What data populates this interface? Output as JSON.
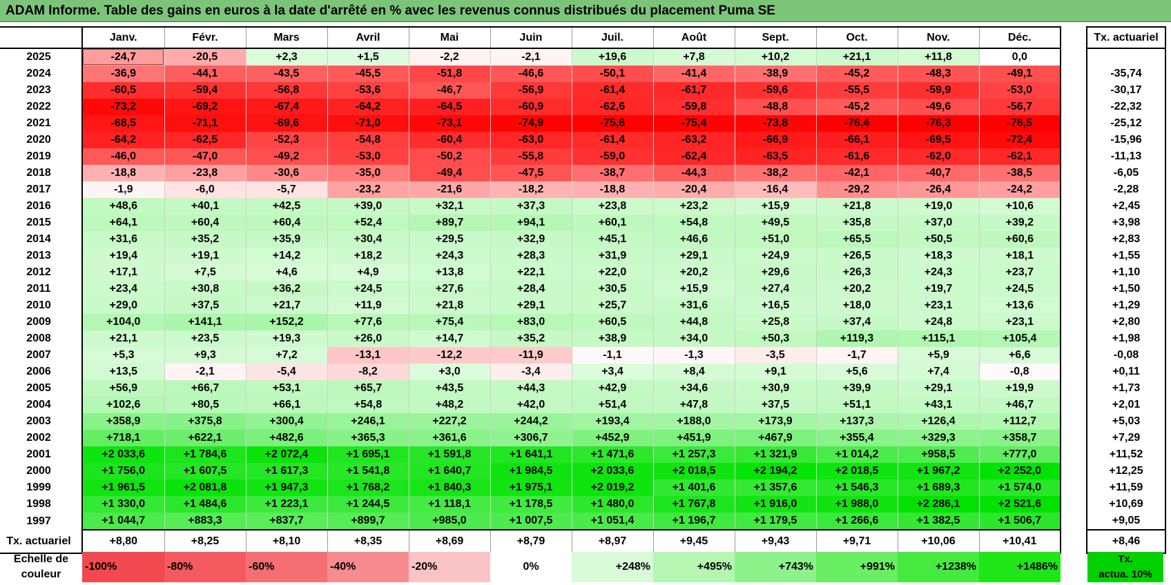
{
  "title": "ADAM Informe. Table des gains en euros à la date d'arrêté en % avec les revenus connus distribués du placement Puma SE",
  "months": [
    "Janv.",
    "Févr.",
    "Mars",
    "Avril",
    "Mai",
    "Juin",
    "Juil.",
    "Août",
    "Sept.",
    "Oct.",
    "Nov.",
    "Déc."
  ],
  "side_header": "Tx. actuariel",
  "rows": [
    {
      "year": "2025",
      "values": [
        "-24,7",
        "-20,5",
        "+2,3",
        "+1,5",
        "-2,2",
        "-2,1",
        "+19,6",
        "+7,8",
        "+10,2",
        "+21,1",
        "+11,8",
        "0,0"
      ],
      "tx": ""
    },
    {
      "year": "2024",
      "values": [
        "-36,9",
        "-44,1",
        "-43,5",
        "-45,5",
        "-51,8",
        "-46,6",
        "-50,1",
        "-41,4",
        "-38,9",
        "-45,2",
        "-48,3",
        "-49,1"
      ],
      "tx": "-35,74"
    },
    {
      "year": "2023",
      "values": [
        "-60,5",
        "-59,4",
        "-56,8",
        "-53,6",
        "-46,7",
        "-56,9",
        "-61,4",
        "-61,7",
        "-59,6",
        "-55,5",
        "-59,9",
        "-53,0"
      ],
      "tx": "-30,17"
    },
    {
      "year": "2022",
      "values": [
        "-73,2",
        "-69,2",
        "-67,4",
        "-64,2",
        "-64,5",
        "-60,9",
        "-62,6",
        "-59,8",
        "-48,8",
        "-45,2",
        "-49,6",
        "-56,7"
      ],
      "tx": "-22,32"
    },
    {
      "year": "2021",
      "values": [
        "-68,5",
        "-71,1",
        "-69,6",
        "-71,0",
        "-73,1",
        "-74,9",
        "-75,6",
        "-75,4",
        "-73,8",
        "-76,4",
        "-76,3",
        "-76,5"
      ],
      "tx": "-25,12"
    },
    {
      "year": "2020",
      "values": [
        "-64,2",
        "-62,5",
        "-52,3",
        "-54,8",
        "-60,4",
        "-63,0",
        "-61,4",
        "-63,2",
        "-66,9",
        "-66,1",
        "-69,5",
        "-72,4"
      ],
      "tx": "-15,96"
    },
    {
      "year": "2019",
      "values": [
        "-46,0",
        "-47,0",
        "-49,2",
        "-53,0",
        "-50,2",
        "-55,8",
        "-59,0",
        "-62,4",
        "-63,5",
        "-61,6",
        "-62,0",
        "-62,1"
      ],
      "tx": "-11,13"
    },
    {
      "year": "2018",
      "values": [
        "-18,8",
        "-23,8",
        "-30,6",
        "-35,0",
        "-49,4",
        "-47,5",
        "-38,7",
        "-44,3",
        "-38,2",
        "-42,1",
        "-40,7",
        "-38,5"
      ],
      "tx": "-6,05"
    },
    {
      "year": "2017",
      "values": [
        "-1,9",
        "-6,0",
        "-5,7",
        "-23,2",
        "-21,6",
        "-18,2",
        "-18,8",
        "-20,4",
        "-16,4",
        "-29,2",
        "-26,4",
        "-24,2"
      ],
      "tx": "-2,28"
    },
    {
      "year": "2016",
      "values": [
        "+48,6",
        "+40,1",
        "+42,5",
        "+39,0",
        "+32,1",
        "+37,3",
        "+23,8",
        "+23,2",
        "+15,9",
        "+21,8",
        "+19,0",
        "+10,6"
      ],
      "tx": "+2,45"
    },
    {
      "year": "2015",
      "values": [
        "+64,1",
        "+60,4",
        "+60,4",
        "+52,4",
        "+89,7",
        "+94,1",
        "+60,1",
        "+54,8",
        "+49,5",
        "+35,8",
        "+37,0",
        "+39,2"
      ],
      "tx": "+3,98"
    },
    {
      "year": "2014",
      "values": [
        "+31,6",
        "+35,2",
        "+35,9",
        "+30,4",
        "+29,5",
        "+32,9",
        "+45,1",
        "+46,6",
        "+51,0",
        "+65,5",
        "+50,5",
        "+60,6"
      ],
      "tx": "+2,83"
    },
    {
      "year": "2013",
      "values": [
        "+19,4",
        "+19,1",
        "+14,2",
        "+18,2",
        "+24,3",
        "+28,3",
        "+31,9",
        "+29,1",
        "+24,9",
        "+26,5",
        "+18,3",
        "+18,1"
      ],
      "tx": "+1,55"
    },
    {
      "year": "2012",
      "values": [
        "+17,1",
        "+7,5",
        "+4,6",
        "+4,9",
        "+13,8",
        "+22,1",
        "+22,0",
        "+20,2",
        "+29,6",
        "+26,3",
        "+24,3",
        "+23,7"
      ],
      "tx": "+1,10"
    },
    {
      "year": "2011",
      "values": [
        "+23,4",
        "+30,8",
        "+36,2",
        "+24,5",
        "+27,6",
        "+28,4",
        "+30,5",
        "+15,9",
        "+27,4",
        "+20,2",
        "+19,7",
        "+24,5"
      ],
      "tx": "+1,50"
    },
    {
      "year": "2010",
      "values": [
        "+29,0",
        "+37,5",
        "+21,7",
        "+11,9",
        "+21,8",
        "+29,1",
        "+25,7",
        "+31,6",
        "+16,5",
        "+18,0",
        "+23,1",
        "+13,6"
      ],
      "tx": "+1,29"
    },
    {
      "year": "2009",
      "values": [
        "+104,0",
        "+141,1",
        "+152,2",
        "+77,6",
        "+75,4",
        "+83,0",
        "+60,5",
        "+44,8",
        "+25,8",
        "+37,4",
        "+24,8",
        "+23,1"
      ],
      "tx": "+2,80"
    },
    {
      "year": "2008",
      "values": [
        "+21,1",
        "+23,5",
        "+19,3",
        "+26,0",
        "+14,7",
        "+35,2",
        "+38,9",
        "+34,0",
        "+50,3",
        "+119,3",
        "+115,1",
        "+105,4"
      ],
      "tx": "+1,98"
    },
    {
      "year": "2007",
      "values": [
        "+5,3",
        "+9,3",
        "+7,2",
        "-13,1",
        "-12,2",
        "-11,9",
        "-1,1",
        "-1,3",
        "-3,5",
        "-1,7",
        "+5,9",
        "+6,6"
      ],
      "tx": "-0,08"
    },
    {
      "year": "2006",
      "values": [
        "+13,5",
        "-2,1",
        "-5,4",
        "-8,2",
        "+3,0",
        "-3,4",
        "+3,4",
        "+8,4",
        "+9,1",
        "+5,6",
        "+7,4",
        "-0,8"
      ],
      "tx": "+0,11"
    },
    {
      "year": "2005",
      "values": [
        "+56,9",
        "+66,7",
        "+53,1",
        "+65,7",
        "+43,5",
        "+44,3",
        "+42,9",
        "+34,6",
        "+30,9",
        "+39,9",
        "+29,1",
        "+19,9"
      ],
      "tx": "+1,73"
    },
    {
      "year": "2004",
      "values": [
        "+102,6",
        "+80,5",
        "+66,1",
        "+54,8",
        "+48,2",
        "+42,0",
        "+51,4",
        "+47,8",
        "+37,5",
        "+51,1",
        "+43,1",
        "+46,7"
      ],
      "tx": "+2,01"
    },
    {
      "year": "2003",
      "values": [
        "+358,9",
        "+375,8",
        "+300,4",
        "+246,1",
        "+227,2",
        "+244,2",
        "+193,4",
        "+188,0",
        "+173,9",
        "+137,3",
        "+126,4",
        "+112,7"
      ],
      "tx": "+5,03"
    },
    {
      "year": "2002",
      "values": [
        "+718,1",
        "+622,1",
        "+482,6",
        "+365,3",
        "+361,6",
        "+306,7",
        "+452,9",
        "+451,9",
        "+467,9",
        "+355,4",
        "+329,3",
        "+358,7"
      ],
      "tx": "+7,29"
    },
    {
      "year": "2001",
      "values": [
        "+2 033,6",
        "+1 784,6",
        "+2 072,4",
        "+1 695,1",
        "+1 591,8",
        "+1 641,1",
        "+1 471,6",
        "+1 257,3",
        "+1 321,9",
        "+1 014,2",
        "+958,5",
        "+777,0"
      ],
      "tx": "+11,52"
    },
    {
      "year": "2000",
      "values": [
        "+1 756,0",
        "+1 607,5",
        "+1 617,3",
        "+1 541,8",
        "+1 640,7",
        "+1 984,5",
        "+2 033,6",
        "+2 018,5",
        "+2 194,2",
        "+2 018,5",
        "+1 967,2",
        "+2 252,0"
      ],
      "tx": "+12,25"
    },
    {
      "year": "1999",
      "values": [
        "+1 961,5",
        "+2 081,8",
        "+1 947,3",
        "+1 768,2",
        "+1 840,3",
        "+1 975,1",
        "+2 019,2",
        "+1 401,6",
        "+1 357,6",
        "+1 546,3",
        "+1 689,3",
        "+1 574,0"
      ],
      "tx": "+11,59"
    },
    {
      "year": "1998",
      "values": [
        "+1 330,0",
        "+1 484,6",
        "+1 223,1",
        "+1 244,5",
        "+1 118,1",
        "+1 178,5",
        "+1 480,0",
        "+1 767,8",
        "+1 916,0",
        "+1 988,0",
        "+2 286,1",
        "+2 521,6"
      ],
      "tx": "+10,69"
    },
    {
      "year": "1997",
      "values": [
        "+1 044,7",
        "+883,3",
        "+837,7",
        "+899,7",
        "+985,0",
        "+1 007,5",
        "+1 051,4",
        "+1 196,7",
        "+1 179,5",
        "+1 266,6",
        "+1 382,5",
        "+1 506,7"
      ],
      "tx": "+9,05"
    }
  ],
  "annual_row": {
    "label": "Tx. actuariel",
    "values": [
      "+8,80",
      "+8,25",
      "+8,10",
      "+8,35",
      "+8,69",
      "+8,79",
      "+8,97",
      "+9,45",
      "+9,43",
      "+9,71",
      "+10,06",
      "+10,41"
    ],
    "tx": "+8,46"
  },
  "legend": {
    "title_line1": "Echelle de",
    "title_line2": "couleur",
    "swatches": [
      {
        "label": "-100%",
        "kind": "neg",
        "color": "#f2484f"
      },
      {
        "label": "-80%",
        "kind": "neg",
        "color": "#f45a60"
      },
      {
        "label": "-60%",
        "kind": "neg",
        "color": "#f56e73"
      },
      {
        "label": "-40%",
        "kind": "neg",
        "color": "#f78c90"
      },
      {
        "label": "-20%",
        "kind": "neg",
        "color": "#fac3c5"
      },
      {
        "label": "0%",
        "kind": "zero",
        "color": "#ffffff"
      },
      {
        "label": "+248%",
        "kind": "pos",
        "color": "#d9fbd8"
      },
      {
        "label": "+495%",
        "kind": "pos",
        "color": "#b4f6b2"
      },
      {
        "label": "+743%",
        "kind": "pos",
        "color": "#8ef28b"
      },
      {
        "label": "+991%",
        "kind": "pos",
        "color": "#69ee64"
      },
      {
        "label": "+1238%",
        "kind": "pos",
        "color": "#44ea3e"
      },
      {
        "label": "+1486%",
        "kind": "pos",
        "color": "#1fe617"
      }
    ],
    "tx_line1": "Tx.",
    "tx_line2": "actua. 10%",
    "tx_color": "#00d200"
  }
}
